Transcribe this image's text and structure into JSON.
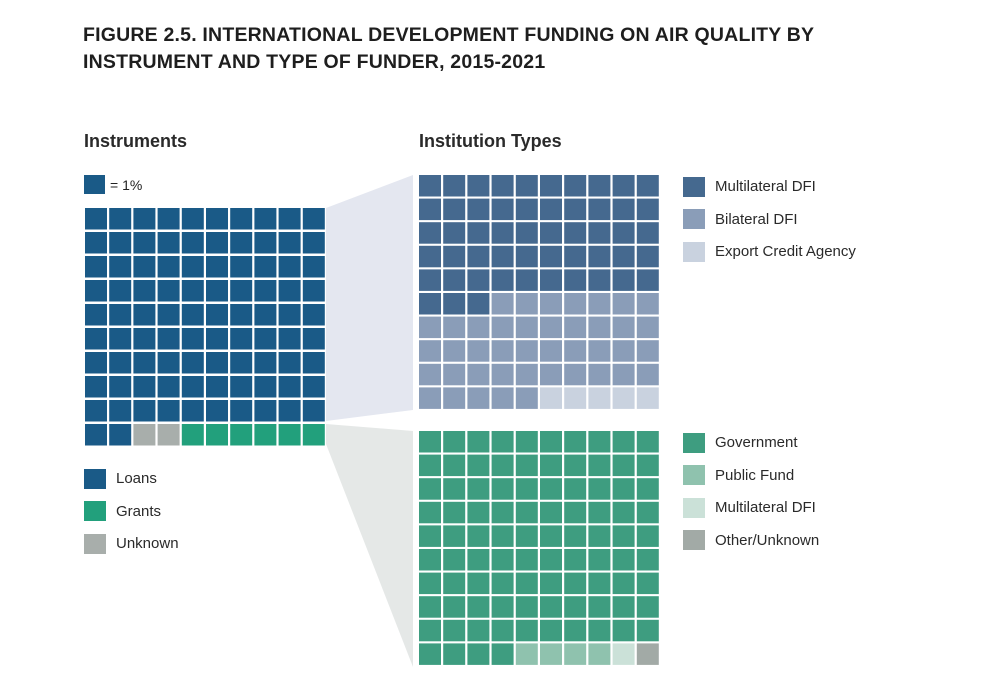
{
  "title_line1": "FIGURE 2.5.  INTERNATIONAL DEVELOPMENT FUNDING ON AIR QUALITY BY",
  "title_line2": "INSTRUMENT AND TYPE OF FUNDER, 2015-2021",
  "unit_label": "= 1%",
  "colors": {
    "loans": "#1a5a87",
    "grants": "#22a07c",
    "unknown": "#a8aeab",
    "multilateral_dfi": "#45698f",
    "bilateral_dfi": "#8a9db8",
    "export_credit_agency": "#c9d2df",
    "government": "#3e9d80",
    "public_fund": "#8fc2ae",
    "multilateral_dfi_grants": "#cbe1d8",
    "other_unknown": "#a2aaa6",
    "connector_top": "#e4e7f0",
    "connector_bottom": "#e5e8e7"
  },
  "chart_data": [
    {
      "type": "waffle",
      "title": "Instruments",
      "unit": "1%",
      "grid": [
        10,
        10
      ],
      "categories": [
        "Loans",
        "Grants",
        "Unknown"
      ],
      "cell_order": [
        "Loans",
        "Unknown",
        "Grants"
      ],
      "values": [
        92,
        6,
        2
      ],
      "legend": [
        {
          "label": "Loans",
          "color_key": "loans"
        },
        {
          "label": "Grants",
          "color_key": "grants"
        },
        {
          "label": "Unknown",
          "color_key": "unknown"
        }
      ]
    },
    {
      "type": "waffle",
      "title": "Institution Types",
      "subset": "Loans",
      "grid": [
        10,
        10
      ],
      "categories": [
        "Multilateral DFI",
        "Bilateral DFI",
        "Export Credit Agency"
      ],
      "cell_order": [
        "Multilateral DFI",
        "Bilateral DFI",
        "Export Credit Agency"
      ],
      "values": [
        53,
        42,
        5
      ],
      "legend": [
        {
          "label": "Multilateral DFI",
          "color_key": "multilateral_dfi"
        },
        {
          "label": "Bilateral DFI",
          "color_key": "bilateral_dfi"
        },
        {
          "label": "Export Credit Agency",
          "color_key": "export_credit_agency"
        }
      ]
    },
    {
      "type": "waffle",
      "subset": "Grants",
      "grid": [
        10,
        10
      ],
      "categories": [
        "Government",
        "Public Fund",
        "Multilateral DFI",
        "Other/Unknown"
      ],
      "cell_order": [
        "Government",
        "Public Fund",
        "Multilateral DFI",
        "Other/Unknown"
      ],
      "values": [
        94,
        4,
        1,
        1
      ],
      "legend": [
        {
          "label": "Government",
          "color_key": "government"
        },
        {
          "label": "Public Fund",
          "color_key": "public_fund"
        },
        {
          "label": "Multilateral DFI",
          "color_key": "multilateral_dfi_grants"
        },
        {
          "label": "Other/Unknown",
          "color_key": "other_unknown"
        }
      ]
    }
  ]
}
